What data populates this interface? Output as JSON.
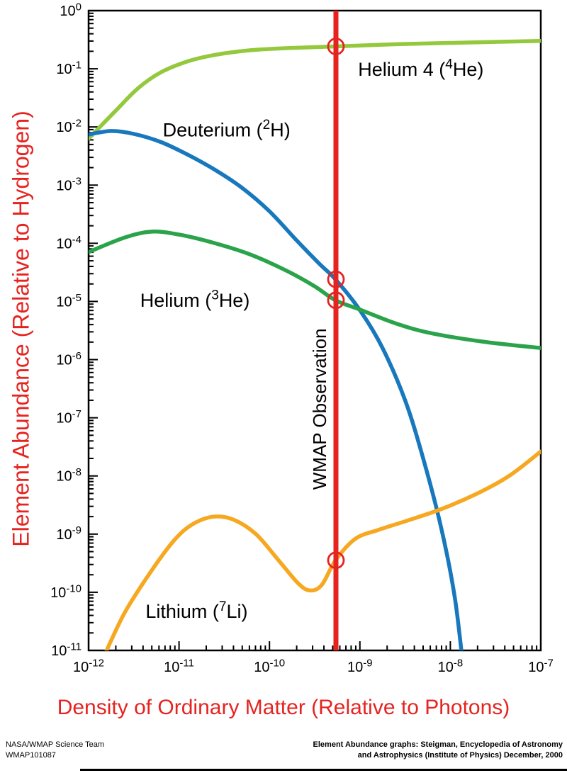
{
  "footer": {
    "left_line1": "NASA/WMAP Science Team",
    "left_line2": "WMAP101087",
    "right_line1": "Element Abundance graphs: Steigman, Encyclopedia of Astronomy",
    "right_line2": "and Astrophysics (Institute of Physics) December, 2000"
  },
  "chart_data": {
    "type": "line",
    "title": "",
    "xlabel": "Density of Ordinary Matter (Relative to Photons)",
    "ylabel": "Element Abundance (Relative to Hydrogen)",
    "x_scale": "log",
    "y_scale": "log",
    "xlim_log": [
      -12,
      -7
    ],
    "ylim_log": [
      -11,
      0
    ],
    "x_tick_exponents": [
      -12,
      -11,
      -10,
      -9,
      -8,
      -7
    ],
    "y_tick_exponents": [
      0,
      -1,
      -2,
      -3,
      -4,
      -5,
      -6,
      -7,
      -8,
      -9,
      -10,
      -11
    ],
    "grid": "off",
    "legend": "inline-curve-labels",
    "axis_color": "#000000",
    "label_color": "#e52420",
    "series": [
      {
        "id": "helium4",
        "name": "Helium 4 (4He)",
        "label_parts": {
          "pre": "Helium 4 (",
          "sup": "4",
          "post": "He)"
        },
        "color": "#94c83d",
        "label_pos_log": [
          -9.02,
          -1.12
        ],
        "points_log10": [
          [
            -12,
            -2.2
          ],
          [
            -11.7,
            -1.72
          ],
          [
            -11.45,
            -1.33
          ],
          [
            -11.2,
            -1.06
          ],
          [
            -10.9,
            -0.87
          ],
          [
            -10.6,
            -0.76
          ],
          [
            -10.2,
            -0.68
          ],
          [
            -9.8,
            -0.645
          ],
          [
            -9.27,
            -0.615
          ],
          [
            -8.6,
            -0.578
          ],
          [
            -7.8,
            -0.548
          ],
          [
            -7,
            -0.52
          ]
        ]
      },
      {
        "id": "deuterium",
        "name": "Deuterium (2H)",
        "label_parts": {
          "pre": "Deuterium (",
          "sup": "2",
          "post": "H)"
        },
        "color": "#1778bd",
        "label_pos_log": [
          -11.18,
          -2.16
        ],
        "points_log10": [
          [
            -12,
            -2.13
          ],
          [
            -11.75,
            -2.07
          ],
          [
            -11.5,
            -2.12
          ],
          [
            -11.2,
            -2.26
          ],
          [
            -10.9,
            -2.48
          ],
          [
            -10.6,
            -2.74
          ],
          [
            -10.3,
            -3.05
          ],
          [
            -10,
            -3.45
          ],
          [
            -9.7,
            -3.95
          ],
          [
            -9.45,
            -4.35
          ],
          [
            -9.27,
            -4.62
          ],
          [
            -9,
            -5.15
          ],
          [
            -8.75,
            -5.8
          ],
          [
            -8.5,
            -6.7
          ],
          [
            -8.3,
            -7.7
          ],
          [
            -8.1,
            -8.9
          ],
          [
            -7.95,
            -10.1
          ],
          [
            -7.85,
            -11.4
          ]
        ]
      },
      {
        "id": "helium3",
        "name": "Helium (3He)",
        "label_parts": {
          "pre": "Helium (",
          "sup": "3",
          "post": "He)"
        },
        "color": "#2aa34a",
        "label_pos_log": [
          -11.43,
          -5.09
        ],
        "points_log10": [
          [
            -12,
            -4.15
          ],
          [
            -11.6,
            -3.9
          ],
          [
            -11.3,
            -3.8
          ],
          [
            -11,
            -3.85
          ],
          [
            -10.6,
            -4.0
          ],
          [
            -10.2,
            -4.2
          ],
          [
            -9.8,
            -4.48
          ],
          [
            -9.5,
            -4.74
          ],
          [
            -9.27,
            -4.98
          ],
          [
            -9,
            -5.14
          ],
          [
            -8.6,
            -5.38
          ],
          [
            -8.2,
            -5.55
          ],
          [
            -7.6,
            -5.7
          ],
          [
            -7,
            -5.8
          ]
        ]
      },
      {
        "id": "lithium",
        "name": "Lithium (7Li)",
        "label_parts": {
          "pre": "Lithium (",
          "sup": "7",
          "post": "Li)"
        },
        "color": "#f6a821",
        "label_pos_log": [
          -11.37,
          -10.44
        ],
        "points_log10": [
          [
            -11.83,
            -11.1
          ],
          [
            -11.6,
            -10.35
          ],
          [
            -11.3,
            -9.62
          ],
          [
            -11.05,
            -9.1
          ],
          [
            -10.85,
            -8.83
          ],
          [
            -10.62,
            -8.7
          ],
          [
            -10.4,
            -8.75
          ],
          [
            -10.15,
            -9.0
          ],
          [
            -9.9,
            -9.45
          ],
          [
            -9.68,
            -9.85
          ],
          [
            -9.55,
            -9.97
          ],
          [
            -9.42,
            -9.87
          ],
          [
            -9.27,
            -9.45
          ],
          [
            -9.05,
            -9.08
          ],
          [
            -8.8,
            -8.93
          ],
          [
            -8.5,
            -8.78
          ],
          [
            -8.1,
            -8.57
          ],
          [
            -7.7,
            -8.3
          ],
          [
            -7.35,
            -8.0
          ],
          [
            -7,
            -7.58
          ]
        ]
      }
    ],
    "wmap": {
      "label": "WMAP Observation",
      "logx": -9.265,
      "line_color": "#e52420",
      "label_center_logy": -6.85,
      "markers": [
        {
          "series": "helium4",
          "logy": -0.615
        },
        {
          "series": "deuterium",
          "logy": -4.62
        },
        {
          "series": "helium3",
          "logy": -4.98
        },
        {
          "series": "lithium",
          "logy": -9.45
        }
      ]
    }
  }
}
